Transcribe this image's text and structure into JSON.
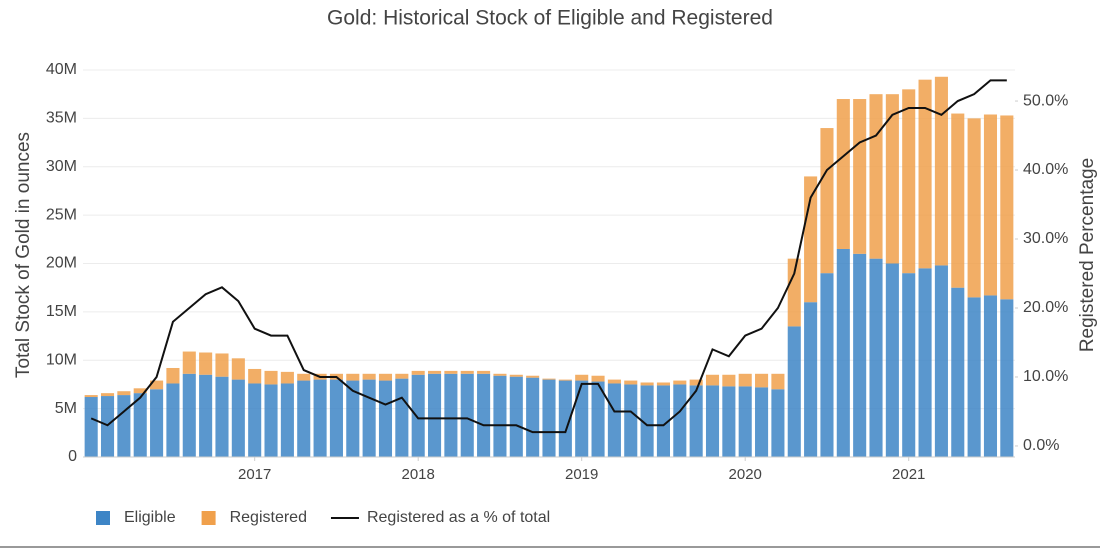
{
  "chart_data": {
    "type": "bar",
    "stacked": true,
    "title": "Gold: Historical Stock of Eligible and Registered",
    "y_label": "Total Stock of Gold in ounces",
    "y2_label": "Registered Percentage",
    "legend": "bottom",
    "grid": true,
    "x": [
      2016.0,
      2016.1,
      2016.2,
      2016.3,
      2016.4,
      2016.5,
      2016.6,
      2016.7,
      2016.8,
      2016.9,
      2017.0,
      2017.1,
      2017.2,
      2017.3,
      2017.4,
      2017.5,
      2017.6,
      2017.7,
      2017.8,
      2017.9,
      2018.0,
      2018.1,
      2018.2,
      2018.3,
      2018.4,
      2018.5,
      2018.6,
      2018.7,
      2018.8,
      2018.9,
      2019.0,
      2019.1,
      2019.2,
      2019.3,
      2019.4,
      2019.5,
      2019.6,
      2019.7,
      2019.8,
      2019.9,
      2020.0,
      2020.1,
      2020.2,
      2020.3,
      2020.4,
      2020.5,
      2020.6,
      2020.7,
      2020.8,
      2020.9,
      2021.0,
      2021.1,
      2021.2,
      2021.3,
      2021.4,
      2021.5,
      2021.6
    ],
    "xlim": [
      2015.95,
      2021.65
    ],
    "xticks": [
      2017,
      2018,
      2019,
      2020,
      2021
    ],
    "ylim": [
      0,
      40000000
    ],
    "yticks": [
      0,
      {
        "value": 5000000,
        "label": "5M"
      },
      {
        "value": 10000000,
        "label": "10M"
      },
      {
        "value": 15000000,
        "label": "15M"
      },
      {
        "value": 20000000,
        "label": "20M"
      },
      {
        "value": 25000000,
        "label": "25M"
      },
      {
        "value": 30000000,
        "label": "30M"
      },
      {
        "value": 35000000,
        "label": "35M"
      },
      {
        "value": 40000000,
        "label": "40M"
      }
    ],
    "y2lim": [
      -1.6,
      54.5
    ],
    "y2ticks": [
      {
        "value": 0,
        "label": "0.0%"
      },
      {
        "value": 10,
        "label": "10.0%"
      },
      {
        "value": 20,
        "label": "20.0%"
      },
      {
        "value": 30,
        "label": "30.0%"
      },
      {
        "value": 40,
        "label": "40.0%"
      },
      {
        "value": 50,
        "label": "50.0%"
      }
    ],
    "series": [
      {
        "name": "Eligible",
        "color": "#3d85c6",
        "values": [
          6200000,
          6300000,
          6400000,
          6600000,
          7000000,
          7600000,
          8600000,
          8500000,
          8300000,
          8000000,
          7600000,
          7500000,
          7600000,
          7900000,
          8000000,
          8000000,
          7900000,
          8000000,
          7900000,
          8100000,
          8500000,
          8600000,
          8600000,
          8600000,
          8600000,
          8400000,
          8300000,
          8200000,
          8000000,
          7900000,
          7900000,
          7800000,
          7600000,
          7500000,
          7400000,
          7400000,
          7500000,
          7400000,
          7400000,
          7300000,
          7300000,
          7200000,
          7000000,
          13500000,
          16000000,
          19000000,
          21500000,
          21000000,
          20500000,
          20000000,
          19000000,
          19500000,
          19800000,
          17500000,
          16500000,
          16700000,
          16300000
        ]
      },
      {
        "name": "Registered",
        "color": "#f0a04b",
        "values": [
          200000,
          300000,
          400000,
          500000,
          900000,
          1600000,
          2300000,
          2300000,
          2400000,
          2200000,
          1500000,
          1400000,
          1200000,
          700000,
          600000,
          600000,
          700000,
          600000,
          700000,
          500000,
          400000,
          300000,
          300000,
          300000,
          300000,
          200000,
          200000,
          200000,
          100000,
          100000,
          600000,
          600000,
          400000,
          400000,
          300000,
          300000,
          400000,
          600000,
          1100000,
          1200000,
          1300000,
          1400000,
          1600000,
          7000000,
          13000000,
          15000000,
          15500000,
          16000000,
          17000000,
          17500000,
          19000000,
          19500000,
          19500000,
          18000000,
          18500000,
          18700000,
          19000000
        ]
      },
      {
        "name": "Registered as a % of total",
        "color": "#111111",
        "axis": "y2",
        "values": [
          4,
          3,
          5,
          7,
          10,
          18,
          20,
          22,
          23,
          21,
          17,
          16,
          16,
          11,
          10,
          10,
          8,
          7,
          6,
          7,
          4,
          4,
          4,
          4,
          3,
          3,
          3,
          2,
          2,
          2,
          9,
          9,
          5,
          5,
          3,
          3,
          5,
          8,
          14,
          13,
          16,
          17,
          20,
          25,
          36,
          40,
          42,
          44,
          45,
          48,
          49,
          49,
          48,
          50,
          51,
          53,
          53
        ]
      }
    ]
  }
}
